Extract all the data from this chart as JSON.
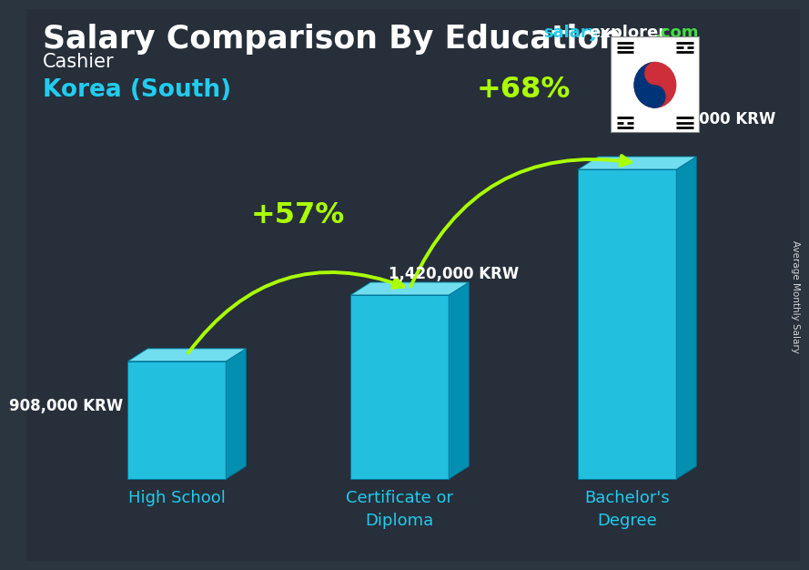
{
  "title_main": "Salary Comparison By Education",
  "subtitle_job": "Cashier",
  "subtitle_country": "Korea (South)",
  "ylabel": "Average Monthly Salary",
  "categories": [
    "High School",
    "Certificate or\nDiploma",
    "Bachelor's\nDegree"
  ],
  "values": [
    908000,
    1420000,
    2390000
  ],
  "value_labels": [
    "908,000 KRW",
    "1,420,000 KRW",
    "2,390,000 KRW"
  ],
  "pct_labels": [
    "+57%",
    "+68%"
  ],
  "bar_face_color": "#22ccee",
  "bar_side_color": "#0099bb",
  "bar_top_color": "#77eeff",
  "bg_color": "#2b3540",
  "text_white": "#ffffff",
  "text_cyan": "#22ccee",
  "text_green": "#aaff00",
  "se_salary_color": "#22ccee",
  "se_explorer_color": "#ffffff",
  "se_com_color": "#44dd44"
}
